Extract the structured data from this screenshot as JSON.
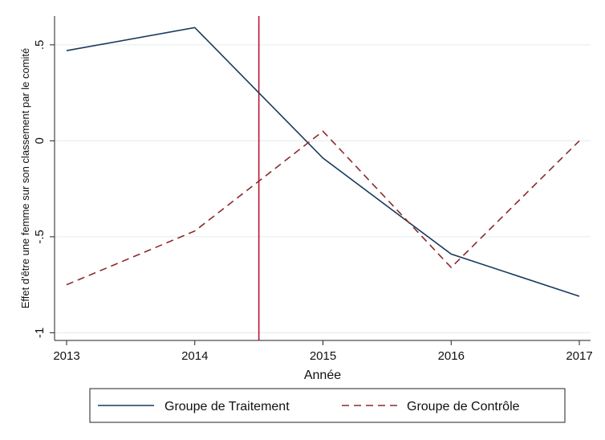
{
  "chart_data": {
    "type": "line",
    "title": "",
    "xlabel": "Année",
    "ylabel": "Effet d'être une femme sur son classement par le comité",
    "x": [
      2013,
      2014,
      2015,
      2016,
      2017
    ],
    "x_ticks": [
      "2013",
      "2014",
      "2015",
      "2016",
      "2017"
    ],
    "y_ticks": [
      {
        "value": -1,
        "label": "-1"
      },
      {
        "value": -0.5,
        "label": "-.5"
      },
      {
        "value": 0,
        "label": "0"
      },
      {
        "value": 0.5,
        "label": ".5"
      }
    ],
    "xlim": [
      2013,
      2017
    ],
    "ylim": [
      -1.04,
      0.65
    ],
    "grid": true,
    "legend_position": "bottom",
    "vertical_line": {
      "x": 2014.5,
      "color": "#b5172f"
    },
    "series": [
      {
        "name": "Groupe de Traitement",
        "values": [
          0.47,
          0.59,
          -0.09,
          -0.59,
          -0.81
        ],
        "color": "#1a3a5c",
        "style": "solid"
      },
      {
        "name": "Groupe de Contrôle",
        "values": [
          -0.75,
          -0.47,
          0.05,
          -0.66,
          0.0
        ],
        "color": "#8b2b2b",
        "style": "dashed"
      }
    ]
  }
}
